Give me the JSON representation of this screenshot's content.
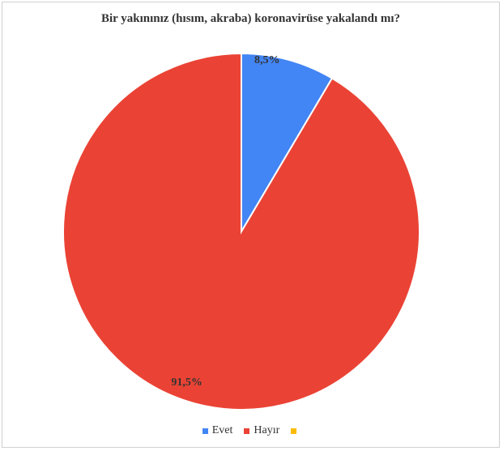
{
  "chart_data": {
    "type": "pie",
    "title": "Bir yakınınız (hısım, akraba) koronavirüse yakalandı mı?",
    "categories": [
      "Evet",
      "Hayır",
      ""
    ],
    "values": [
      8.5,
      91.5,
      0
    ],
    "data_labels": [
      "8,5%",
      "91,5%",
      ""
    ],
    "colors": [
      "#4285F4",
      "#EA4335",
      "#FBBC04"
    ],
    "legend": "bottom"
  },
  "legend": {
    "items": [
      {
        "label": "Evet",
        "color": "#4285F4"
      },
      {
        "label": "Hayır",
        "color": "#EA4335"
      },
      {
        "label": "",
        "color": "#FBBC04"
      }
    ]
  }
}
